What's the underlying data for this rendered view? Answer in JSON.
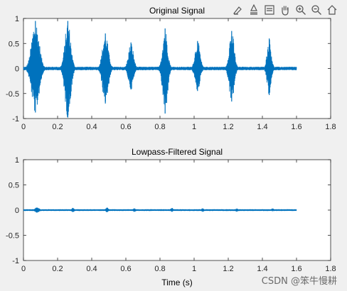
{
  "toolbar": {
    "icons": [
      "brush-icon",
      "data-tips-icon",
      "legend-icon",
      "pan-icon",
      "zoom-in-icon",
      "zoom-out-icon",
      "home-icon"
    ]
  },
  "colors": {
    "line": "#0072BD",
    "axes_bg": "#ffffff",
    "figure_bg": "#f0f0f0",
    "axis": "#262626"
  },
  "watermark": "CSDN @笨牛慢耕",
  "chart_data": [
    {
      "type": "line",
      "title": "Original Signal",
      "xlabel": "",
      "ylabel": "",
      "xlim": [
        0,
        1.8
      ],
      "ylim": [
        -1,
        1
      ],
      "xticks": [
        0,
        0.2,
        0.4,
        0.6,
        0.8,
        1,
        1.2,
        1.4,
        1.6,
        1.8
      ],
      "xtick_labels": [
        "0",
        "0.2",
        "0.4",
        "0.6",
        "0.8",
        "1",
        "1.2",
        "1.4",
        "1.6",
        "1.8"
      ],
      "yticks": [
        1,
        0.5,
        0,
        -0.5,
        -1
      ],
      "ytick_labels": [
        "1",
        "0.5",
        "0",
        "-0.5",
        "-1"
      ],
      "signal_end": 1.6,
      "series": [
        {
          "bursts": [
            {
              "t": 0.07,
              "peak": 0.95,
              "trough": -0.88,
              "width": 0.09
            },
            {
              "t": 0.26,
              "peak": 0.95,
              "trough": -0.98,
              "width": 0.07
            },
            {
              "t": 0.48,
              "peak": 0.7,
              "trough": -0.7,
              "width": 0.07
            },
            {
              "t": 0.63,
              "peak": 0.52,
              "trough": -0.42,
              "width": 0.06
            },
            {
              "t": 0.83,
              "peak": 0.8,
              "trough": -0.9,
              "width": 0.06
            },
            {
              "t": 1.02,
              "peak": 0.55,
              "trough": -0.45,
              "width": 0.06
            },
            {
              "t": 1.22,
              "peak": 0.75,
              "trough": -0.66,
              "width": 0.06
            },
            {
              "t": 1.44,
              "peak": 0.6,
              "trough": -0.53,
              "width": 0.05
            }
          ]
        }
      ]
    },
    {
      "type": "line",
      "title": "Lowpass-Filtered Signal",
      "xlabel": "Time (s)",
      "ylabel": "",
      "xlim": [
        0,
        1.8
      ],
      "ylim": [
        -1,
        1
      ],
      "xticks": [
        0,
        0.2,
        0.4,
        0.6,
        0.8,
        1,
        1.2,
        1.4,
        1.6,
        1.8
      ],
      "xtick_labels": [
        "0",
        "0.2",
        "0.4",
        "0.6",
        "0.8",
        "1",
        "1.2",
        "1.4",
        "1.6",
        "1.8"
      ],
      "yticks": [
        1,
        0.5,
        0,
        -0.5,
        -1
      ],
      "ytick_labels": [
        "1",
        "0.5",
        "0",
        "-0.5",
        "-1"
      ],
      "signal_end": 1.6,
      "series": [
        {
          "bursts": [
            {
              "t": 0.08,
              "peak": 0.05,
              "trough": -0.05,
              "width": 0.05
            },
            {
              "t": 0.29,
              "peak": 0.04,
              "trough": -0.04,
              "width": 0.03
            },
            {
              "t": 0.49,
              "peak": 0.05,
              "trough": -0.04,
              "width": 0.03
            },
            {
              "t": 0.65,
              "peak": 0.03,
              "trough": -0.03,
              "width": 0.03
            },
            {
              "t": 0.87,
              "peak": 0.04,
              "trough": -0.03,
              "width": 0.03
            },
            {
              "t": 1.05,
              "peak": 0.03,
              "trough": -0.03,
              "width": 0.03
            },
            {
              "t": 1.25,
              "peak": 0.03,
              "trough": -0.03,
              "width": 0.03
            },
            {
              "t": 1.46,
              "peak": 0.03,
              "trough": -0.02,
              "width": 0.03
            }
          ]
        }
      ]
    }
  ]
}
